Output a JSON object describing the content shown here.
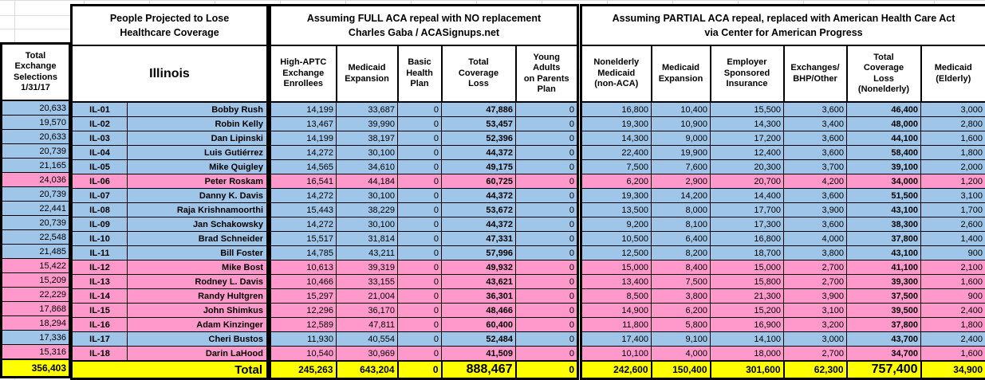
{
  "colors": {
    "democrat_row": "#9FC5E8",
    "republican_row": "#FF99CC",
    "total_row": "#FFFF00",
    "grid_line": "#DCDCDC",
    "cell_border": "#000000"
  },
  "left_column": {
    "header": "Total\nExchange\nSelections\n1/31/17",
    "total": "356,403"
  },
  "district_block": {
    "title": "People Projected to Lose\nHealthcare Coverage",
    "state": "Illinois",
    "total_label": "Total"
  },
  "full_repeal": {
    "title": "Assuming FULL ACA repeal with NO replacement\nCharles Gaba / ACASignups.net",
    "columns": [
      "High-APTC\nExchange\nEnrollees",
      "Medicaid\nExpansion",
      "Basic\nHealth\nPlan",
      "Total\nCoverage\nLoss",
      "Young\nAdults\non Parents\nPlan"
    ],
    "totals": [
      "245,263",
      "643,204",
      "0",
      "888,467",
      "0"
    ]
  },
  "partial_repeal": {
    "title": "Assuming PARTIAL ACA repeal, replaced with American Health Care Act\nvia Center for American Progress",
    "columns": [
      "Nonelderly\nMedicaid\n(non-ACA)",
      "Medicaid\nExpansion",
      "Employer\nSponsored\nInsurance",
      "Exchanges/\nBHP/Other",
      "Total\nCoverage\nLoss\n(Nonelderly)",
      "Medicaid\n(Elderly)"
    ],
    "totals": [
      "242,600",
      "150,400",
      "301,600",
      "62,300",
      "757,400",
      "34,900"
    ]
  },
  "rows": [
    {
      "party": "D",
      "exchange": "20,633",
      "district": "IL-01",
      "rep": "Bobby Rush",
      "full": [
        "14,199",
        "33,687",
        "0",
        "47,886",
        "0"
      ],
      "partial": [
        "16,800",
        "10,400",
        "15,500",
        "3,600",
        "46,400",
        "3,000"
      ]
    },
    {
      "party": "D",
      "exchange": "19,570",
      "district": "IL-02",
      "rep": "Robin Kelly",
      "full": [
        "13,467",
        "39,990",
        "0",
        "53,457",
        "0"
      ],
      "partial": [
        "19,300",
        "10,900",
        "14,300",
        "3,400",
        "48,000",
        "2,800"
      ]
    },
    {
      "party": "D",
      "exchange": "20,633",
      "district": "IL-03",
      "rep": "Dan Lipinski",
      "full": [
        "14,199",
        "38,197",
        "0",
        "52,396",
        "0"
      ],
      "partial": [
        "14,300",
        "9,000",
        "17,200",
        "3,600",
        "44,100",
        "1,600"
      ]
    },
    {
      "party": "D",
      "exchange": "20,739",
      "district": "IL-04",
      "rep": "Luis Gutiérrez",
      "full": [
        "14,272",
        "30,100",
        "0",
        "44,372",
        "0"
      ],
      "partial": [
        "22,400",
        "19,900",
        "12,400",
        "3,600",
        "58,400",
        "1,800"
      ]
    },
    {
      "party": "D",
      "exchange": "21,165",
      "district": "IL-05",
      "rep": "Mike Quigley",
      "full": [
        "14,565",
        "34,610",
        "0",
        "49,175",
        "0"
      ],
      "partial": [
        "7,500",
        "7,600",
        "20,300",
        "3,700",
        "39,100",
        "2,000"
      ]
    },
    {
      "party": "R",
      "exchange": "24,036",
      "district": "IL-06",
      "rep": "Peter Roskam",
      "full": [
        "16,541",
        "44,184",
        "0",
        "60,725",
        "0"
      ],
      "partial": [
        "6,200",
        "2,900",
        "20,700",
        "4,200",
        "34,000",
        "1,200"
      ]
    },
    {
      "party": "D",
      "exchange": "20,739",
      "district": "IL-07",
      "rep": "Danny K. Davis",
      "full": [
        "14,272",
        "30,100",
        "0",
        "44,372",
        "0"
      ],
      "partial": [
        "19,300",
        "14,200",
        "14,400",
        "3,600",
        "51,500",
        "3,100"
      ]
    },
    {
      "party": "D",
      "exchange": "22,441",
      "district": "IL-08",
      "rep": "Raja Krishnamoorthi",
      "full": [
        "15,443",
        "38,229",
        "0",
        "53,672",
        "0"
      ],
      "partial": [
        "13,500",
        "8,000",
        "17,700",
        "3,900",
        "43,100",
        "1,700"
      ]
    },
    {
      "party": "D",
      "exchange": "20,739",
      "district": "IL-09",
      "rep": "Jan Schakowsky",
      "full": [
        "14,272",
        "30,100",
        "0",
        "44,372",
        "0"
      ],
      "partial": [
        "9,200",
        "8,100",
        "17,300",
        "3,600",
        "38,300",
        "2,600"
      ]
    },
    {
      "party": "D",
      "exchange": "22,548",
      "district": "IL-10",
      "rep": "Brad Schneider",
      "full": [
        "15,517",
        "31,814",
        "0",
        "47,331",
        "0"
      ],
      "partial": [
        "10,500",
        "6,400",
        "16,800",
        "4,000",
        "37,800",
        "1,400"
      ]
    },
    {
      "party": "D",
      "exchange": "21,485",
      "district": "IL-11",
      "rep": "Bill Foster",
      "full": [
        "14,785",
        "43,211",
        "0",
        "57,996",
        "0"
      ],
      "partial": [
        "12,500",
        "8,200",
        "18,700",
        "3,800",
        "43,100",
        "900"
      ]
    },
    {
      "party": "R",
      "exchange": "15,422",
      "district": "IL-12",
      "rep": "Mike Bost",
      "full": [
        "10,613",
        "39,319",
        "0",
        "49,932",
        "0"
      ],
      "partial": [
        "15,000",
        "8,400",
        "15,000",
        "2,700",
        "41,100",
        "2,100"
      ]
    },
    {
      "party": "R",
      "exchange": "15,209",
      "district": "IL-13",
      "rep": "Rodney L. Davis",
      "full": [
        "10,466",
        "33,155",
        "0",
        "43,621",
        "0"
      ],
      "partial": [
        "13,400",
        "7,500",
        "15,800",
        "2,700",
        "39,300",
        "1,600"
      ]
    },
    {
      "party": "R",
      "exchange": "22,229",
      "district": "IL-14",
      "rep": "Randy Hultgren",
      "full": [
        "15,297",
        "21,004",
        "0",
        "36,301",
        "0"
      ],
      "partial": [
        "8,500",
        "3,800",
        "21,300",
        "3,900",
        "37,500",
        "900"
      ]
    },
    {
      "party": "R",
      "exchange": "17,868",
      "district": "IL-15",
      "rep": "John Shimkus",
      "full": [
        "12,296",
        "36,170",
        "0",
        "48,466",
        "0"
      ],
      "partial": [
        "14,900",
        "6,200",
        "15,200",
        "3,100",
        "39,500",
        "2,400"
      ]
    },
    {
      "party": "R",
      "exchange": "18,294",
      "district": "IL-16",
      "rep": "Adam Kinzinger",
      "full": [
        "12,589",
        "47,811",
        "0",
        "60,400",
        "0"
      ],
      "partial": [
        "11,800",
        "5,800",
        "16,900",
        "3,200",
        "37,800",
        "1,800"
      ]
    },
    {
      "party": "D",
      "exchange": "17,336",
      "district": "IL-17",
      "rep": "Cheri Bustos",
      "full": [
        "11,930",
        "40,554",
        "0",
        "52,484",
        "0"
      ],
      "partial": [
        "17,400",
        "9,100",
        "14,100",
        "3,000",
        "43,700",
        "2,400"
      ]
    },
    {
      "party": "R",
      "exchange": "15,316",
      "district": "IL-18",
      "rep": "Darin LaHood",
      "full": [
        "10,540",
        "30,969",
        "0",
        "41,509",
        "0"
      ],
      "partial": [
        "10,100",
        "4,000",
        "18,000",
        "2,700",
        "34,700",
        "1,600"
      ]
    }
  ]
}
